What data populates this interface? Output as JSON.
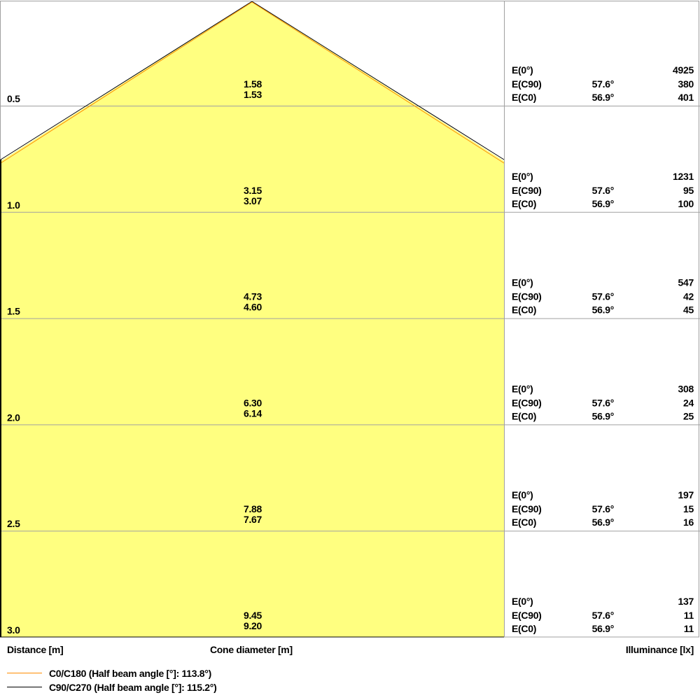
{
  "colors": {
    "fill": "#ffff80",
    "c0_line": "#ff8c00",
    "c90_line": "#000000",
    "grid": "#a0a0a0"
  },
  "labels": {
    "distance": "Distance [m]",
    "cone_diameter": "Cone diameter [m]",
    "illuminance": "Illuminance [lx]"
  },
  "legend": [
    {
      "label": "C0/C180 (Half beam angle [°]: 113.8°)",
      "color": "#ff8c00"
    },
    {
      "label": "C90/C270 (Half beam angle [°]: 115.2°)",
      "color": "#000000"
    }
  ],
  "rows": [
    {
      "distance": "0.5",
      "d_c90": "1.58",
      "d_c0": "1.53",
      "e0_label": "E(0°)",
      "e0": "4925",
      "ec90_label": "E(C90)",
      "ec90_angle": "57.6°",
      "ec90": "380",
      "ec0_label": "E(C0)",
      "ec0_angle": "56.9°",
      "ec0": "401"
    },
    {
      "distance": "1.0",
      "d_c90": "3.15",
      "d_c0": "3.07",
      "e0_label": "E(0°)",
      "e0": "1231",
      "ec90_label": "E(C90)",
      "ec90_angle": "57.6°",
      "ec90": "95",
      "ec0_label": "E(C0)",
      "ec0_angle": "56.9°",
      "ec0": "100"
    },
    {
      "distance": "1.5",
      "d_c90": "4.73",
      "d_c0": "4.60",
      "e0_label": "E(0°)",
      "e0": "547",
      "ec90_label": "E(C90)",
      "ec90_angle": "57.6°",
      "ec90": "42",
      "ec0_label": "E(C0)",
      "ec0_angle": "56.9°",
      "ec0": "45"
    },
    {
      "distance": "2.0",
      "d_c90": "6.30",
      "d_c0": "6.14",
      "e0_label": "E(0°)",
      "e0": "308",
      "ec90_label": "E(C90)",
      "ec90_angle": "57.6°",
      "ec90": "24",
      "ec0_label": "E(C0)",
      "ec0_angle": "56.9°",
      "ec0": "25"
    },
    {
      "distance": "2.5",
      "d_c90": "7.88",
      "d_c0": "7.67",
      "e0_label": "E(0°)",
      "e0": "197",
      "ec90_label": "E(C90)",
      "ec90_angle": "57.6°",
      "ec90": "15",
      "ec0_label": "E(C0)",
      "ec0_angle": "56.9°",
      "ec0": "16"
    },
    {
      "distance": "3.0",
      "d_c90": "9.45",
      "d_c0": "9.20",
      "e0_label": "E(0°)",
      "e0": "137",
      "ec90_label": "E(C90)",
      "ec90_angle": "57.6°",
      "ec90": "11",
      "ec0_label": "E(C0)",
      "ec0_angle": "56.9°",
      "ec0": "11"
    }
  ]
}
